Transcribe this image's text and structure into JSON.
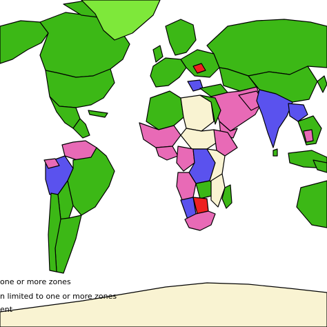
{
  "colors": {
    "ocean": "#ffffff",
    "green": "#3cb816",
    "light_green": "#7ee83a",
    "pink": "#e86ab6",
    "blue": "#5a52ee",
    "red": "#ee2020",
    "cream": "#f9f3d2",
    "border": "#000000"
  },
  "legend": {
    "line1": "one or more zones",
    "line2": "n limited to one or more zones",
    "line3": "ent"
  }
}
